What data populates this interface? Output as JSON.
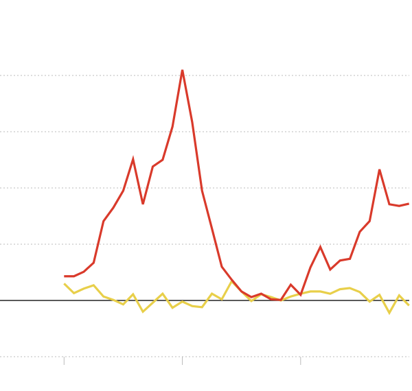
{
  "chart_data": {
    "type": "line",
    "x": [
      0,
      1,
      2,
      3,
      4,
      5,
      6,
      7,
      8,
      9,
      10,
      11,
      12,
      13,
      14,
      15,
      16,
      17,
      18,
      19,
      20,
      21,
      22,
      23,
      24,
      25,
      26,
      27,
      28,
      29,
      30,
      31,
      32,
      33,
      34,
      35
    ],
    "series": [
      {
        "color": "#e8cf4a",
        "values": [
          0.3,
          0.13,
          0.21,
          0.27,
          0.07,
          0.01,
          -0.07,
          0.11,
          -0.2,
          -0.04,
          0.12,
          -0.13,
          -0.02,
          -0.1,
          -0.12,
          0.12,
          0.02,
          0.34,
          0.16,
          -0.01,
          0.11,
          0.06,
          0,
          0.07,
          0.12,
          0.16,
          0.16,
          0.12,
          0.2,
          0.22,
          0.15,
          -0.02,
          0.1,
          -0.22,
          0.09,
          -0.09
        ]
      },
      {
        "color": "#d93a2b",
        "values": [
          0.43,
          0.43,
          0.51,
          0.67,
          1.41,
          1.65,
          1.95,
          2.51,
          1.71,
          2.38,
          2.5,
          3.09,
          4.1,
          3.17,
          1.95,
          1.28,
          0.6,
          0.37,
          0.16,
          0.06,
          0.12,
          0.02,
          0.01,
          0.28,
          0.1,
          0.59,
          0.95,
          0.55,
          0.71,
          0.74,
          1.22,
          1.41,
          2.33,
          1.71,
          1.68,
          1.72
        ]
      }
    ],
    "xlim": [
      -6.5,
      35.3
    ],
    "xticks": [
      0,
      12,
      24
    ],
    "ylim": [
      -1.5,
      5.2
    ],
    "yticks": [
      -1,
      0,
      1,
      2,
      3,
      4
    ],
    "grid": true
  }
}
